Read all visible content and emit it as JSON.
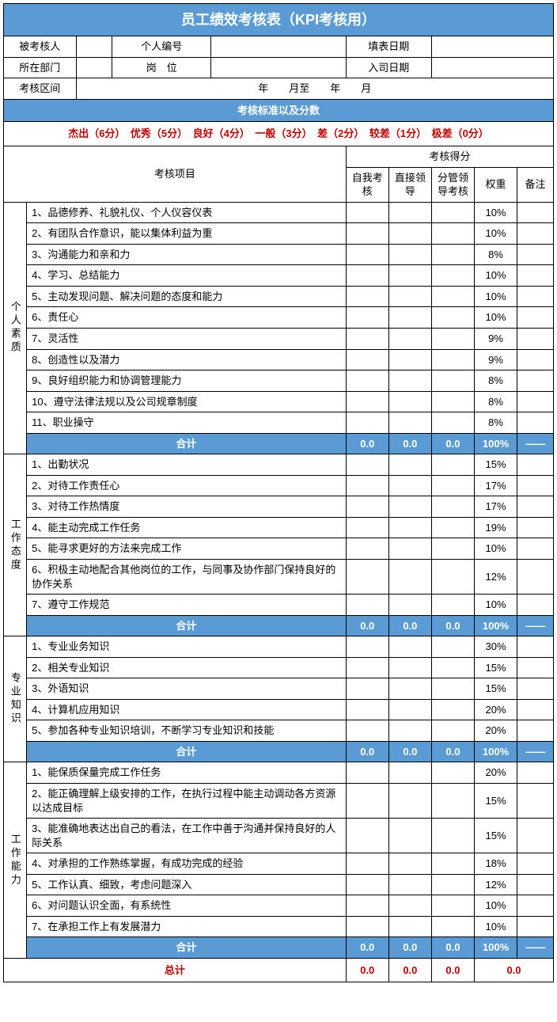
{
  "title": "员工绩效考核表（KPI考核用）",
  "info": {
    "l1a": "被考核人",
    "l1b": "个人编号",
    "l1c": "填表日期",
    "l2a": "所在部门",
    "l2b": "岗　位",
    "l2c": "入司日期",
    "l3a": "考核区间",
    "l3mid": "年　　月至　　年　　月"
  },
  "standards_header": "考核标准以及分数",
  "legend": "杰出（6分）　优秀（5分）　良好（4分）　一般（3分）　差（2分）　较差（1分）　极差（0分）",
  "col": {
    "item": "考核项目",
    "score_group": "考核得分",
    "self": "自我考核",
    "direct": "直接领导",
    "branch": "分管领导考核",
    "weight": "权重",
    "remark": "备注"
  },
  "sections": [
    {
      "name": "个人素质",
      "items": [
        {
          "t": "1、品德修养、礼貌礼仪、个人仪容仪表",
          "w": "10%"
        },
        {
          "t": "2、有团队合作意识，能以集体利益为重",
          "w": "10%"
        },
        {
          "t": "3、沟通能力和亲和力",
          "w": "8%"
        },
        {
          "t": "4、学习、总结能力",
          "w": "10%"
        },
        {
          "t": "5、主动发现问题、解决问题的态度和能力",
          "w": "10%"
        },
        {
          "t": "6、责任心",
          "w": "10%"
        },
        {
          "t": "7、灵活性",
          "w": "9%"
        },
        {
          "t": "8、创造性以及潜力",
          "w": "9%"
        },
        {
          "t": "9、良好组织能力和协调管理能力",
          "w": "8%"
        },
        {
          "t": "10、遵守法律法规以及公司规章制度",
          "w": "8%"
        },
        {
          "t": "11、职业操守",
          "w": "8%"
        }
      ]
    },
    {
      "name": "工作态度",
      "items": [
        {
          "t": "1、出勤状况",
          "w": "15%"
        },
        {
          "t": "2、对待工作责任心",
          "w": "17%"
        },
        {
          "t": "3、对待工作热情度",
          "w": "17%"
        },
        {
          "t": "4、能主动完成工作任务",
          "w": "19%"
        },
        {
          "t": "5、能寻求更好的方法来完成工作",
          "w": "10%"
        },
        {
          "t": "6、积极主动地配合其他岗位的工作，与同事及协作部门保持良好的协作关系",
          "w": "12%"
        },
        {
          "t": "7、遵守工作规范",
          "w": "10%"
        }
      ]
    },
    {
      "name": "专业知识",
      "items": [
        {
          "t": "1、专业业务知识",
          "w": "30%"
        },
        {
          "t": "2、相关专业知识",
          "w": "15%"
        },
        {
          "t": "3、外语知识",
          "w": "15%"
        },
        {
          "t": "4、计算机应用知识",
          "w": "20%"
        },
        {
          "t": "5、参加各种专业知识培训，不断学习专业知识和技能",
          "w": "20%"
        }
      ]
    },
    {
      "name": "工作能力",
      "items": [
        {
          "t": "1、能保质保量完成工作任务",
          "w": "20%"
        },
        {
          "t": "2、能正确理解上级安排的工作，在执行过程中能主动调动各方资源以达成目标",
          "w": "15%"
        },
        {
          "t": "3、能准确地表达出自己的看法，在工作中善于沟通并保持良好的人际关系",
          "w": "15%"
        },
        {
          "t": "4、对承担的工作熟练掌握，有成功完成的经验",
          "w": "18%"
        },
        {
          "t": "5、工作认真、细致，考虑问题深入",
          "w": "12%"
        },
        {
          "t": "6、对问题认识全面，有系统性",
          "w": "10%"
        },
        {
          "t": "7、在承担工作上有发展潜力",
          "w": "10%"
        }
      ]
    }
  ],
  "subtotal": {
    "label": "合计",
    "self": "0.0",
    "direct": "0.0",
    "branch": "0.0",
    "weight": "100%",
    "remark": "——"
  },
  "grand": {
    "label": "总计",
    "self": "0.0",
    "direct": "0.0",
    "branch": "0.0",
    "final": "0.0"
  }
}
